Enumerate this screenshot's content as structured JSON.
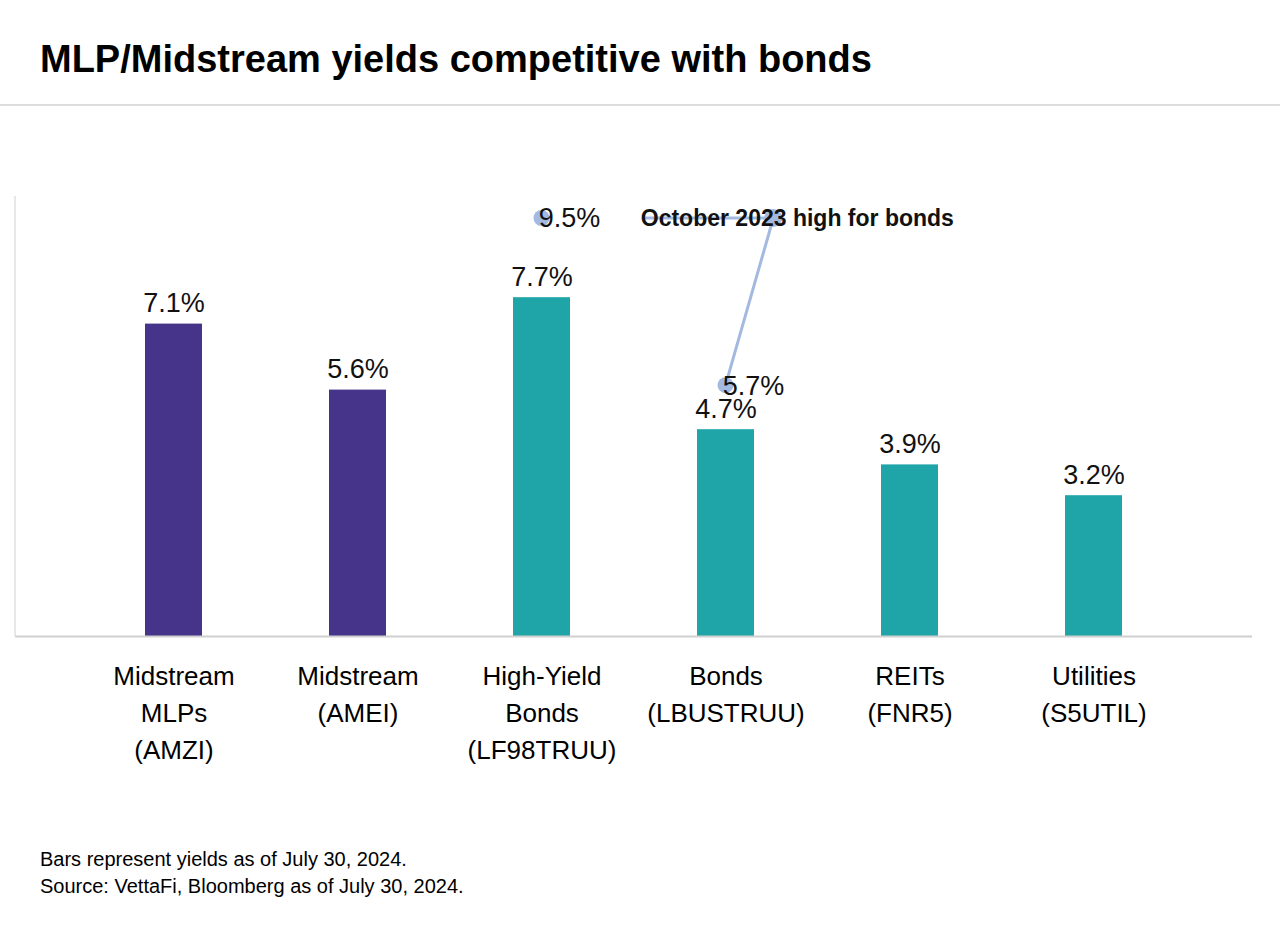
{
  "chart_data": {
    "type": "bar",
    "title": "MLP/Midstream yields competitive with bonds",
    "categories": [
      "Midstream\nMLPs\n(AMZI)",
      "Midstream\n(AMEI)",
      "High-Yield\nBonds\n(LF98TRUU)",
      "Bonds\n(LBUSTRUU)",
      "REITs\n(FNR5)",
      "Utilities\n(S5UTIL)"
    ],
    "values": [
      7.1,
      5.6,
      7.7,
      4.7,
      3.9,
      3.2
    ],
    "value_labels": [
      "7.1%",
      "5.6%",
      "7.7%",
      "4.7%",
      "3.9%",
      "3.2%"
    ],
    "colors": [
      "#46338a",
      "#46338a",
      "#1fa5a8",
      "#1fa5a8",
      "#1fa5a8",
      "#1fa5a8"
    ],
    "data_labels": true,
    "tick_labels": "x",
    "ylim": [
      0,
      10
    ],
    "highs": {
      "label": "October 2023 high for bonds",
      "categories": [
        "High-Yield\nBonds\n(LF98TRUU)",
        "Bonds\n(LBUSTRUU)"
      ],
      "values": [
        9.5,
        5.7
      ],
      "value_labels": [
        "9.5%",
        "5.7%"
      ],
      "color": "#a3b9e0"
    },
    "notes": [
      "Bars represent yields as of July 30, 2024.",
      "Source: VettaFi, Bloomberg as of July 30, 2024."
    ]
  }
}
